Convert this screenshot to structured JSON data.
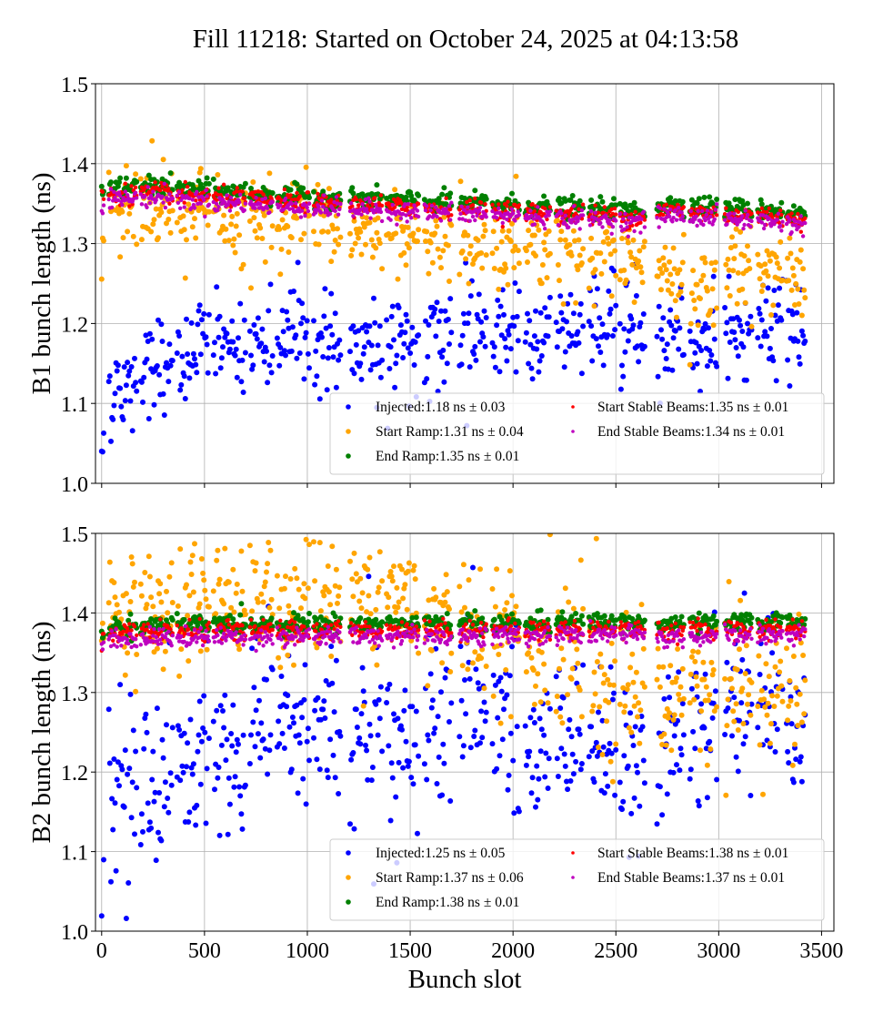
{
  "title": "Fill 11218: Started on October 24, 2025 at 04:13:58",
  "chart_data": [
    {
      "type": "scatter",
      "title": "",
      "xlabel": "",
      "ylabel": "B1 bunch length (ns)",
      "xlim": [
        -30,
        3560
      ],
      "ylim": [
        1.0,
        1.5
      ],
      "xticks": [
        0,
        500,
        1000,
        1500,
        2000,
        2500,
        3000,
        3500
      ],
      "yticks": [
        "1.0",
        "1.1",
        "1.2",
        "1.3",
        "1.4",
        "1.5"
      ],
      "grid": true,
      "legend_position": "lower-right",
      "trains": [
        [
          0,
          12
        ],
        [
          35,
          170
        ],
        [
          190,
          345
        ],
        [
          367,
          522
        ],
        [
          544,
          699
        ],
        [
          721,
          832
        ],
        [
          854,
          1009
        ],
        [
          1031,
          1164
        ],
        [
          1208,
          1363
        ],
        [
          1385,
          1540
        ],
        [
          1570,
          1700
        ],
        [
          1740,
          1870
        ],
        [
          1900,
          2030
        ],
        [
          2060,
          2180
        ],
        [
          2210,
          2340
        ],
        [
          2370,
          2500
        ],
        [
          2520,
          2640
        ],
        [
          2700,
          2830
        ],
        [
          2860,
          2990
        ],
        [
          3030,
          3160
        ],
        [
          3190,
          3310
        ],
        [
          3330,
          3420
        ]
      ],
      "series": [
        {
          "name": "Injected",
          "legend": "Injected:1.18 ns ± 0.03",
          "color": "#0000ff",
          "spread": 0.03,
          "train_means": [
            1.05,
            1.12,
            1.15,
            1.16,
            1.17,
            1.175,
            1.19,
            1.175,
            1.17,
            1.17,
            1.175,
            1.19,
            1.195,
            1.18,
            1.19,
            1.195,
            1.2,
            1.18,
            1.17,
            1.18,
            1.2,
            1.18
          ]
        },
        {
          "name": "Start Ramp",
          "legend": "Start Ramp:1.31 ns ± 0.04",
          "color": "#ffa500",
          "spread": 0.025,
          "train_means": [
            1.31,
            1.34,
            1.345,
            1.34,
            1.335,
            1.33,
            1.33,
            1.325,
            1.32,
            1.315,
            1.31,
            1.31,
            1.3,
            1.295,
            1.29,
            1.29,
            1.29,
            1.27,
            1.255,
            1.27,
            1.265,
            1.245
          ]
        },
        {
          "name": "End Ramp",
          "legend": "End Ramp:1.35 ns ± 0.01",
          "color": "#008000",
          "spread": 0.006,
          "train_means": [
            1.365,
            1.37,
            1.372,
            1.368,
            1.365,
            1.362,
            1.36,
            1.358,
            1.356,
            1.354,
            1.352,
            1.351,
            1.349,
            1.347,
            1.345,
            1.343,
            1.341,
            1.349,
            1.347,
            1.344,
            1.342,
            1.338
          ]
        },
        {
          "name": "Start Stable Beams",
          "legend": "Start Stable Beams:1.35 ns ± 0.01",
          "color": "#ff0000",
          "spread": 0.006,
          "train_means": [
            1.357,
            1.362,
            1.364,
            1.36,
            1.357,
            1.354,
            1.352,
            1.35,
            1.348,
            1.346,
            1.344,
            1.343,
            1.341,
            1.339,
            1.337,
            1.335,
            1.333,
            1.341,
            1.339,
            1.336,
            1.334,
            1.33
          ]
        },
        {
          "name": "End Stable Beams",
          "legend": "End Stable Beams:1.34 ns ± 0.01",
          "color": "#bf00bf",
          "spread": 0.006,
          "train_means": [
            1.351,
            1.356,
            1.358,
            1.354,
            1.351,
            1.348,
            1.346,
            1.344,
            1.342,
            1.34,
            1.338,
            1.337,
            1.335,
            1.333,
            1.331,
            1.329,
            1.327,
            1.335,
            1.333,
            1.33,
            1.328,
            1.324
          ]
        }
      ]
    },
    {
      "type": "scatter",
      "title": "",
      "xlabel": "Bunch slot",
      "ylabel": "B2 bunch length (ns)",
      "xlim": [
        -30,
        3560
      ],
      "ylim": [
        1.0,
        1.5
      ],
      "xticks": [
        0,
        500,
        1000,
        1500,
        2000,
        2500,
        3000,
        3500
      ],
      "yticks": [
        "1.0",
        "1.1",
        "1.2",
        "1.3",
        "1.4",
        "1.5"
      ],
      "grid": true,
      "legend_position": "lower-right",
      "trains": [
        [
          0,
          12
        ],
        [
          35,
          170
        ],
        [
          190,
          345
        ],
        [
          367,
          522
        ],
        [
          544,
          699
        ],
        [
          721,
          832
        ],
        [
          854,
          1009
        ],
        [
          1031,
          1164
        ],
        [
          1208,
          1363
        ],
        [
          1385,
          1540
        ],
        [
          1570,
          1700
        ],
        [
          1740,
          1870
        ],
        [
          1900,
          2030
        ],
        [
          2060,
          2180
        ],
        [
          2210,
          2340
        ],
        [
          2370,
          2500
        ],
        [
          2520,
          2640
        ],
        [
          2700,
          2830
        ],
        [
          2860,
          2990
        ],
        [
          3030,
          3160
        ],
        [
          3190,
          3310
        ],
        [
          3330,
          3420
        ]
      ],
      "series": [
        {
          "name": "Injected",
          "legend": "Injected:1.25 ns ± 0.05",
          "color": "#0000ff",
          "spread": 0.05,
          "train_means": [
            1.06,
            1.17,
            1.18,
            1.2,
            1.22,
            1.24,
            1.25,
            1.25,
            1.25,
            1.24,
            1.26,
            1.27,
            1.26,
            1.24,
            1.25,
            1.24,
            1.23,
            1.26,
            1.27,
            1.29,
            1.3,
            1.27
          ]
        },
        {
          "name": "Start Ramp",
          "legend": "Start Ramp:1.37 ns ± 0.06",
          "color": "#ffa500",
          "spread": 0.04,
          "train_means": [
            1.35,
            1.41,
            1.4,
            1.42,
            1.43,
            1.44,
            1.42,
            1.41,
            1.41,
            1.42,
            1.4,
            1.39,
            1.38,
            1.34,
            1.33,
            1.32,
            1.31,
            1.3,
            1.31,
            1.31,
            1.3,
            1.3
          ]
        },
        {
          "name": "End Ramp",
          "legend": "End Ramp:1.38 ns ± 0.01",
          "color": "#008000",
          "spread": 0.006,
          "train_means": [
            1.375,
            1.383,
            1.385,
            1.385,
            1.386,
            1.386,
            1.386,
            1.386,
            1.386,
            1.387,
            1.387,
            1.387,
            1.387,
            1.387,
            1.388,
            1.388,
            1.388,
            1.385,
            1.386,
            1.387,
            1.388,
            1.389
          ]
        },
        {
          "name": "Start Stable Beams",
          "legend": "Start Stable Beams:1.38 ns ± 0.01",
          "color": "#ff0000",
          "spread": 0.006,
          "train_means": [
            1.367,
            1.375,
            1.377,
            1.377,
            1.378,
            1.378,
            1.378,
            1.378,
            1.378,
            1.379,
            1.379,
            1.379,
            1.379,
            1.379,
            1.38,
            1.38,
            1.38,
            1.377,
            1.378,
            1.379,
            1.38,
            1.381
          ]
        },
        {
          "name": "End Stable Beams",
          "legend": "End Stable Beams:1.37 ns ± 0.01",
          "color": "#bf00bf",
          "spread": 0.006,
          "train_means": [
            1.359,
            1.367,
            1.369,
            1.369,
            1.37,
            1.37,
            1.37,
            1.37,
            1.37,
            1.371,
            1.371,
            1.371,
            1.371,
            1.371,
            1.372,
            1.372,
            1.372,
            1.369,
            1.37,
            1.371,
            1.372,
            1.373
          ]
        }
      ]
    }
  ]
}
